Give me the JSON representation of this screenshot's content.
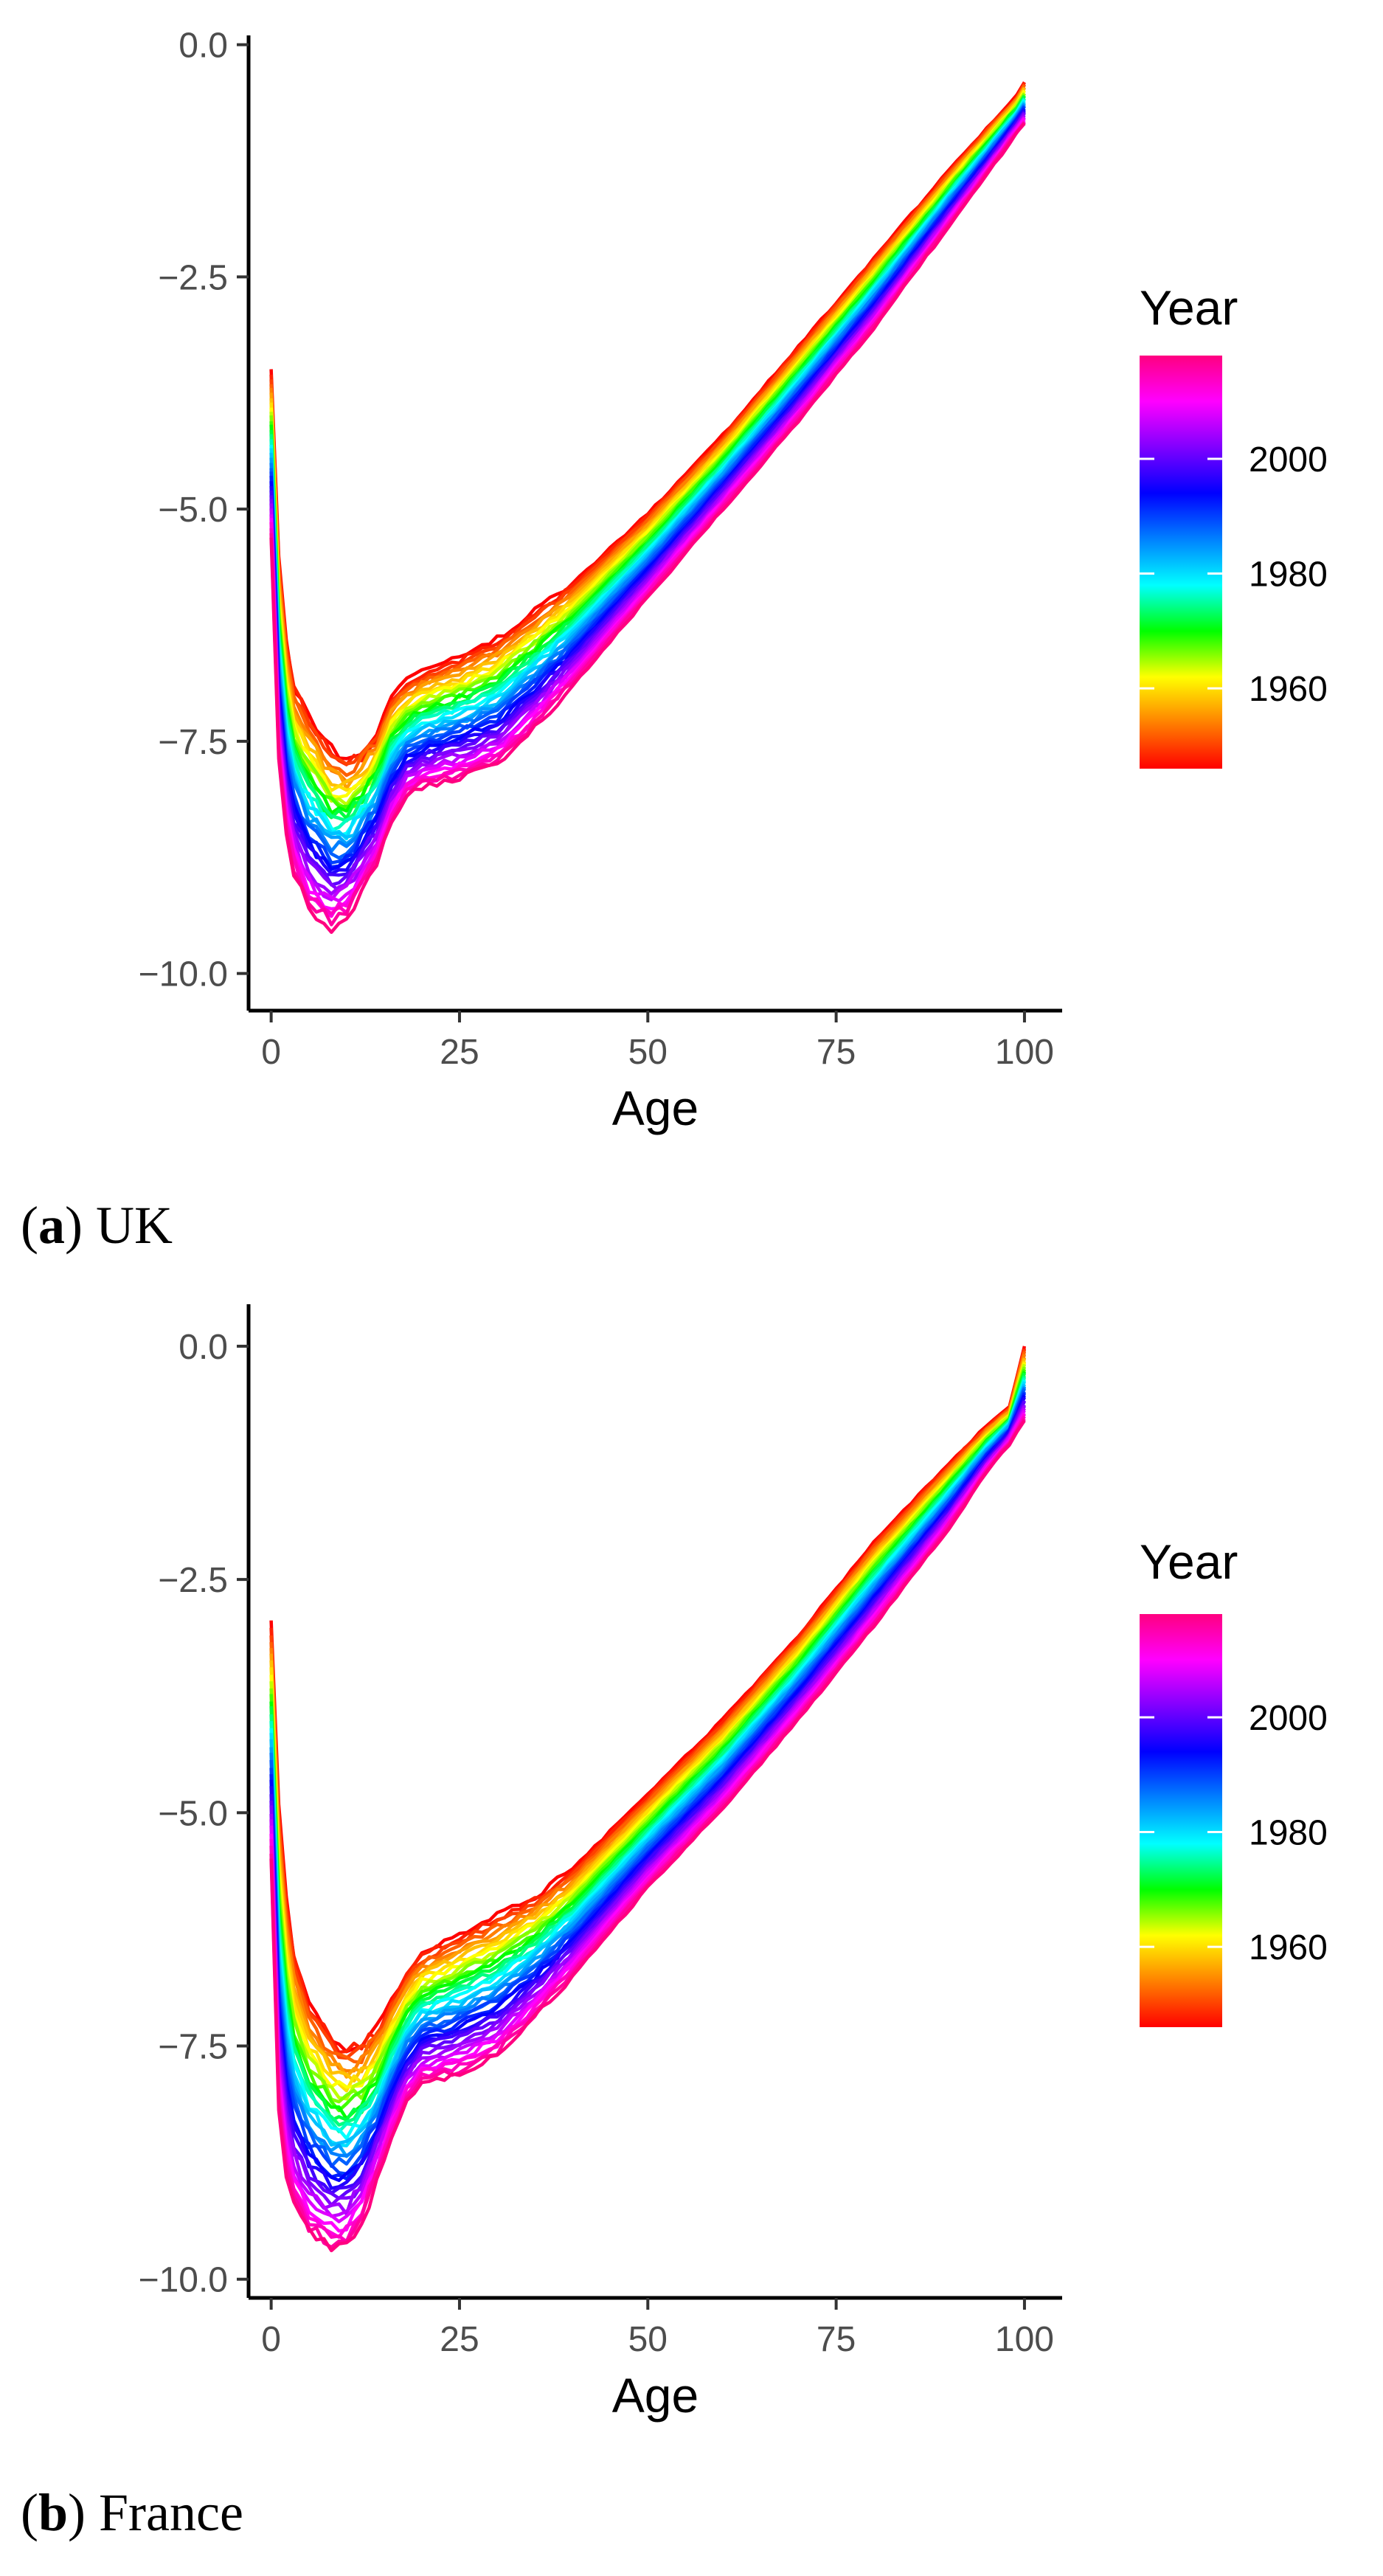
{
  "legend_title": "Year",
  "colors": {
    "gradient": [
      "#ff0000",
      "#ff8000",
      "#ffff00",
      "#00ff00",
      "#00ffff",
      "#0080ff",
      "#0000ff",
      "#8000ff",
      "#ff00ff",
      "#ff0080"
    ]
  },
  "captions": [
    {
      "letter": "a",
      "country": "UK"
    },
    {
      "letter": "b",
      "country": "France"
    }
  ],
  "chart_data": [
    {
      "type": "line",
      "title": "",
      "panel_label": "(a) UK",
      "xlabel": "Age",
      "ylabel": "",
      "xlim": [
        -3,
        105
      ],
      "ylim": [
        -10.4,
        0.1
      ],
      "xticks": [
        0,
        25,
        50,
        75,
        100
      ],
      "yticks": [
        0.0,
        -2.5,
        -5.0,
        -7.5,
        -10.0
      ],
      "ytick_labels": [
        "0.0",
        "−2.5",
        "−5.0",
        "−7.5",
        "−10.0"
      ],
      "legend": {
        "title": "Year",
        "type": "colorbar",
        "range": [
          1946,
          2018
        ],
        "ticks": [
          1960,
          1980,
          2000
        ],
        "placement": "right"
      },
      "year_range": [
        1946,
        2018
      ],
      "year_step": 2,
      "series_first_year": {
        "name": "1946",
        "x": [
          0,
          1,
          2,
          3,
          5,
          8,
          10,
          12,
          14,
          16,
          18,
          20,
          25,
          30,
          35,
          40,
          50,
          60,
          70,
          80,
          90,
          95,
          99,
          100
        ],
        "y": [
          -3.5,
          -5.5,
          -6.4,
          -6.9,
          -7.2,
          -7.6,
          -7.7,
          -7.6,
          -7.4,
          -7.0,
          -6.85,
          -6.75,
          -6.6,
          -6.4,
          -6.1,
          -5.8,
          -5.05,
          -4.2,
          -3.25,
          -2.3,
          -1.35,
          -0.9,
          -0.55,
          -0.4
        ]
      },
      "series_last_year": {
        "name": "2018",
        "x": [
          0,
          1,
          2,
          3,
          5,
          8,
          10,
          12,
          14,
          16,
          18,
          20,
          25,
          30,
          35,
          40,
          50,
          60,
          70,
          80,
          90,
          95,
          99,
          100
        ],
        "y": [
          -5.3,
          -7.7,
          -8.5,
          -8.9,
          -9.3,
          -9.5,
          -9.4,
          -9.1,
          -8.8,
          -8.4,
          -8.1,
          -8.0,
          -7.9,
          -7.75,
          -7.35,
          -6.9,
          -5.95,
          -5.0,
          -4.05,
          -3.05,
          -1.95,
          -1.4,
          -0.95,
          -0.85
        ]
      }
    },
    {
      "type": "line",
      "title": "",
      "panel_label": "(b) France",
      "xlabel": "Age",
      "ylabel": "",
      "xlim": [
        -3,
        105
      ],
      "ylim": [
        -10.2,
        0.45
      ],
      "xticks": [
        0,
        25,
        50,
        75,
        100
      ],
      "yticks": [
        0.0,
        -2.5,
        -5.0,
        -7.5,
        -10.0
      ],
      "ytick_labels": [
        "0.0",
        "−2.5",
        "−5.0",
        "−7.5",
        "−10.0"
      ],
      "legend": {
        "title": "Year",
        "type": "colorbar",
        "range": [
          1946,
          2018
        ],
        "ticks": [
          1960,
          1980,
          2000
        ],
        "placement": "right"
      },
      "year_range": [
        1946,
        2018
      ],
      "year_step": 2,
      "series_first_year": {
        "name": "1946",
        "x": [
          0,
          1,
          2,
          3,
          5,
          8,
          10,
          12,
          14,
          16,
          18,
          20,
          25,
          30,
          35,
          40,
          50,
          60,
          70,
          80,
          90,
          95,
          98,
          100
        ],
        "y": [
          -2.95,
          -4.9,
          -5.9,
          -6.5,
          -7.0,
          -7.4,
          -7.5,
          -7.45,
          -7.3,
          -7.0,
          -6.7,
          -6.5,
          -6.3,
          -6.1,
          -5.9,
          -5.6,
          -4.8,
          -4.0,
          -3.1,
          -2.1,
          -1.25,
          -0.85,
          -0.65,
          0.0
        ]
      },
      "series_last_year": {
        "name": "2018",
        "x": [
          0,
          1,
          2,
          3,
          5,
          8,
          10,
          12,
          14,
          16,
          18,
          20,
          25,
          30,
          35,
          40,
          50,
          60,
          70,
          80,
          90,
          95,
          98,
          100
        ],
        "y": [
          -5.5,
          -8.2,
          -8.9,
          -9.2,
          -9.5,
          -9.7,
          -9.65,
          -9.4,
          -8.95,
          -8.5,
          -8.1,
          -7.9,
          -7.8,
          -7.6,
          -7.2,
          -6.75,
          -5.8,
          -4.95,
          -4.0,
          -3.0,
          -1.95,
          -1.35,
          -1.05,
          -0.8
        ]
      }
    }
  ]
}
